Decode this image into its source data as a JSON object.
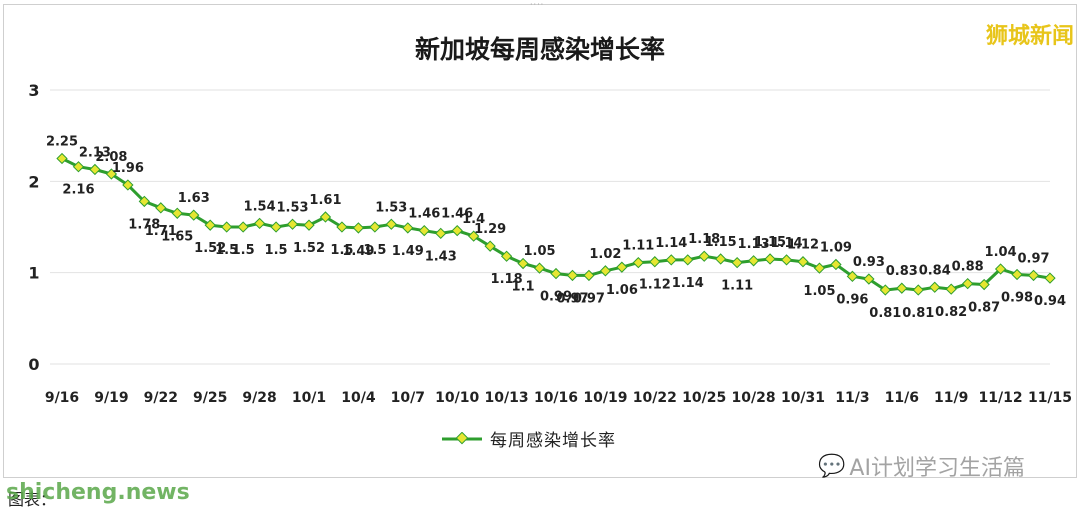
{
  "brand_stamp": "狮城新闻",
  "footer": {
    "source_label": "图表："
  },
  "watermarks": {
    "site": "shicheng.news",
    "account": "AI计划学习生活篇"
  },
  "colors": {
    "line": "#2e9e2e",
    "marker_fill": "#e6e632",
    "grid": "#e2e2e2",
    "brand": "#e8c51a"
  },
  "chart_data": {
    "type": "line",
    "title": "新加坡每周感染增长率",
    "xlabel": "",
    "ylabel": "",
    "ylim": [
      0,
      3
    ],
    "yticks": [
      0,
      1,
      2,
      3
    ],
    "grid": true,
    "legend": "bottom",
    "x": [
      "9/16",
      "9/17",
      "9/18",
      "9/19",
      "9/20",
      "9/21",
      "9/22",
      "9/23",
      "9/24",
      "9/25",
      "9/26",
      "9/27",
      "9/28",
      "9/29",
      "9/30",
      "10/1",
      "10/2",
      "10/3",
      "10/4",
      "10/5",
      "10/6",
      "10/7",
      "10/8",
      "10/9",
      "10/10",
      "10/11",
      "10/12",
      "10/13",
      "10/14",
      "10/15",
      "10/16",
      "10/17",
      "10/18",
      "10/19",
      "10/20",
      "10/21",
      "10/22",
      "10/23",
      "10/24",
      "10/25",
      "10/26",
      "10/27",
      "10/28",
      "10/29",
      "10/30",
      "10/31",
      "11/1",
      "11/2",
      "11/3",
      "11/4",
      "11/5",
      "11/6",
      "11/7",
      "11/8",
      "11/9",
      "11/10",
      "11/11",
      "11/12",
      "11/13",
      "11/14",
      "11/15"
    ],
    "xticks": [
      "9/16",
      "9/19",
      "9/22",
      "9/25",
      "9/28",
      "10/1",
      "10/4",
      "10/7",
      "10/10",
      "10/13",
      "10/16",
      "10/19",
      "10/22",
      "10/25",
      "10/28",
      "10/31",
      "11/3",
      "11/6",
      "11/9",
      "11/12",
      "11/15"
    ],
    "series": [
      {
        "name": "每周感染增长率",
        "values": [
          2.25,
          2.16,
          2.13,
          2.08,
          1.96,
          1.78,
          1.71,
          1.65,
          1.63,
          1.52,
          1.5,
          1.5,
          1.54,
          1.5,
          1.53,
          1.52,
          1.61,
          1.5,
          1.49,
          1.5,
          1.53,
          1.49,
          1.46,
          1.43,
          1.46,
          1.4,
          1.29,
          1.18,
          1.1,
          1.05,
          0.99,
          0.97,
          0.97,
          1.02,
          1.06,
          1.11,
          1.12,
          1.14,
          1.14,
          1.18,
          1.15,
          1.11,
          1.13,
          1.15,
          1.14,
          1.12,
          1.05,
          1.09,
          0.96,
          0.93,
          0.81,
          0.83,
          0.81,
          0.84,
          0.82,
          0.88,
          0.87,
          1.04,
          0.98,
          0.97,
          0.94
        ]
      }
    ]
  }
}
